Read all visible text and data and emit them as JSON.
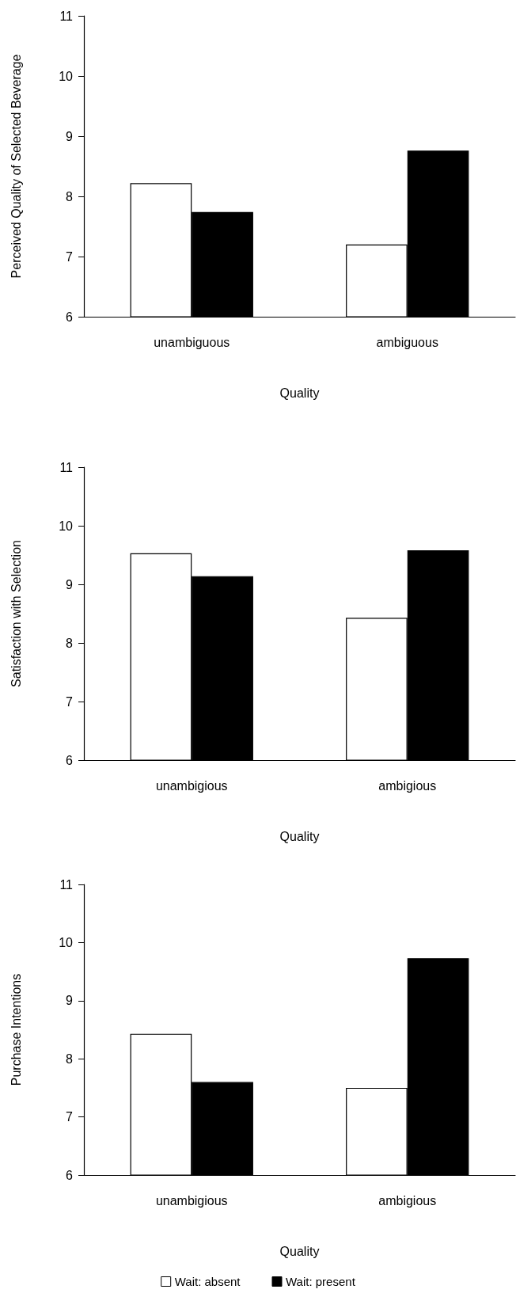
{
  "chart_data": [
    {
      "type": "bar",
      "ylabel": "Perceived Quality of Selected Beverage",
      "xlabel": "Quality",
      "categories": [
        "unambiguous",
        "ambiguous"
      ],
      "series": [
        {
          "color": "#ffffff",
          "values": [
            8.22,
            7.2
          ]
        },
        {
          "color": "#000000",
          "values": [
            7.74,
            8.76
          ]
        }
      ],
      "ylim": [
        6,
        11
      ],
      "yticks": [
        6,
        7,
        8,
        9,
        10,
        11
      ],
      "grid": false,
      "legend": false
    },
    {
      "type": "bar",
      "ylabel": "Satisfaction with Selection",
      "xlabel": "Quality",
      "categories": [
        "unambigious",
        "ambigious"
      ],
      "series": [
        {
          "color": "#ffffff",
          "values": [
            9.53,
            8.43
          ]
        },
        {
          "color": "#000000",
          "values": [
            9.14,
            9.58
          ]
        }
      ],
      "ylim": [
        6,
        11
      ],
      "yticks": [
        6,
        7,
        8,
        9,
        10,
        11
      ],
      "grid": false,
      "legend": false
    },
    {
      "type": "bar",
      "ylabel": "Purchase Intentions",
      "xlabel": "Quality",
      "categories": [
        "unambigious",
        "ambigious"
      ],
      "series": [
        {
          "name": "Wait: absent",
          "color": "#ffffff",
          "values": [
            8.43,
            7.5
          ]
        },
        {
          "name": "Wait: present",
          "color": "#000000",
          "values": [
            7.6,
            9.73
          ]
        }
      ],
      "ylim": [
        6,
        11
      ],
      "yticks": [
        6,
        7,
        8,
        9,
        10,
        11
      ],
      "grid": false,
      "legend": "bottom"
    }
  ]
}
